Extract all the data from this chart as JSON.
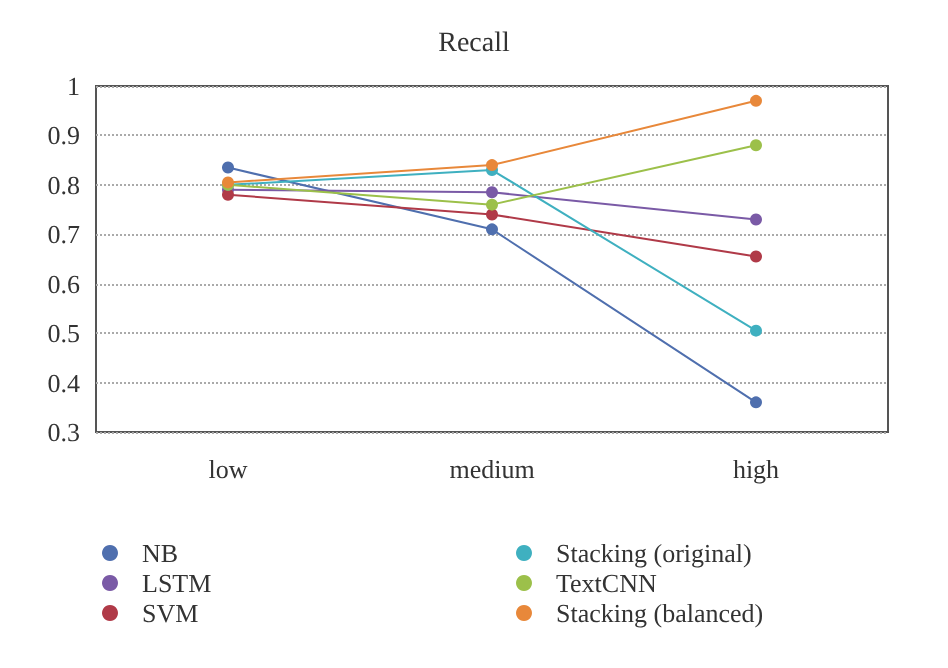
{
  "chart_data": {
    "type": "line",
    "title": "Recall",
    "categories": [
      "low",
      "medium",
      "high"
    ],
    "series": [
      {
        "name": "NB",
        "color": "#4f6fae",
        "values": [
          0.835,
          0.71,
          0.36
        ]
      },
      {
        "name": "LSTM",
        "color": "#7a5aa6",
        "values": [
          0.79,
          0.785,
          0.73
        ]
      },
      {
        "name": "SVM",
        "color": "#b03a48",
        "values": [
          0.78,
          0.74,
          0.655
        ]
      },
      {
        "name": "Stacking (original)",
        "color": "#3fb0c0",
        "values": [
          0.8,
          0.83,
          0.505
        ]
      },
      {
        "name": "TextCNN",
        "color": "#9cc04a",
        "values": [
          0.8,
          0.76,
          0.88
        ]
      },
      {
        "name": "Stacking (balanced)",
        "color": "#e8883a",
        "values": [
          0.805,
          0.84,
          0.97
        ]
      }
    ],
    "ylim": [
      0.3,
      1
    ],
    "yticks": [
      0.3,
      0.4,
      0.5,
      0.6,
      0.7,
      0.8,
      0.9,
      1
    ],
    "grid": "y",
    "legend": "bottom",
    "marker": "circle",
    "line_style": "solid"
  }
}
